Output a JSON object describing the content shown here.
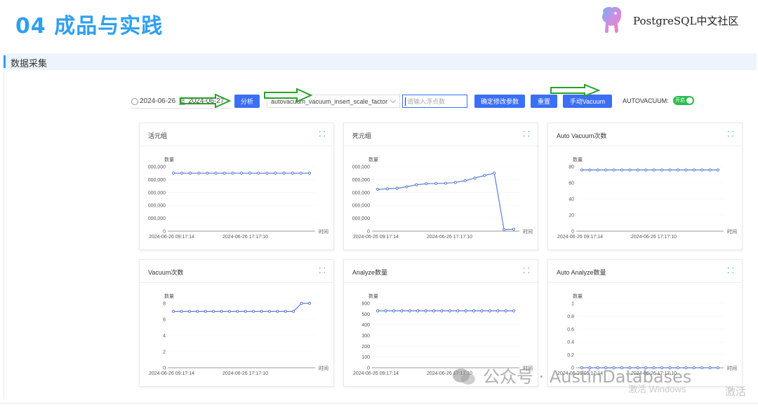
{
  "slide": {
    "title": "04 成品与实践",
    "brand": "PostgreSQL中文社区"
  },
  "section": {
    "label": "数据采集"
  },
  "toolbar": {
    "date_start": "2024-06-26",
    "date_sep": "至",
    "date_end": "2024-06-27",
    "analyze_button": "分析",
    "param_select": "autovacuum_vacuum_insert_scale_factor",
    "float_input_placeholder": "请输入浮点数",
    "confirm_button": "确定修改参数",
    "reset_button": "重置",
    "manual_vacuum_button": "手动Vacuum",
    "autovacuum_label": "AUTOVACUUM:",
    "toggle_label": "开启"
  },
  "colors": {
    "accent": "#3b6ff5",
    "line": "#5b7bd5",
    "toggle": "#2bbd4e",
    "title": "#2f9ff0"
  },
  "charts": [
    {
      "title": "活元组",
      "unit": "数量",
      "xlabel": "时间",
      "yticks": [
        "0",
        "000,000",
        "000,000",
        "000,000",
        "000,000",
        "000,000"
      ],
      "xticks": [
        "2024-06-26 09:17:14",
        "2024-06-26 17:17:10"
      ]
    },
    {
      "title": "死元组",
      "unit": "数量",
      "xlabel": "时间",
      "yticks": [
        "0",
        "000,000",
        "000,000",
        "000,000",
        "000,000",
        "000,000"
      ],
      "xticks": [
        "2024-06-26 09:17:14",
        "2024-06-26 17:17:10"
      ]
    },
    {
      "title": "Auto Vacuum次数",
      "unit": "数量",
      "xlabel": "时间",
      "yticks": [
        "0",
        "20",
        "40",
        "60",
        "80"
      ],
      "xticks": [
        "2024-06-26 09:17:14",
        "2024-06-26 17:17:10"
      ]
    },
    {
      "title": "Vacuum次数",
      "unit": "数量",
      "xlabel": "时间",
      "yticks": [
        "0",
        "2",
        "4",
        "6",
        "8"
      ],
      "xticks": [
        "2024-06-26 09:17:14",
        "2024-06-26 17:17:10"
      ]
    },
    {
      "title": "Analyze数量",
      "unit": "数量",
      "xlabel": "时间",
      "yticks": [
        "0",
        "100",
        "200",
        "300",
        "400",
        "500",
        "600"
      ],
      "xticks": [
        "2024-06-26 09:17:14",
        "2024-06-26 17:17:10"
      ]
    },
    {
      "title": "Auto Analyze数量",
      "unit": "数量",
      "xlabel": "时间",
      "yticks": [
        "0",
        "0.2",
        "0.4",
        "0.6",
        "0.8",
        "1"
      ],
      "xticks": [
        "2024-06-26 09:17:14",
        "2024-06-26 17:17:10"
      ]
    }
  ],
  "chart_data": [
    {
      "type": "line",
      "title": "活元组",
      "ylabel": "数量",
      "xlabel": "时间",
      "ylim": [
        0,
        5
      ],
      "y_scale_note": "axis labels truncated",
      "values": [
        4.5,
        4.5,
        4.5,
        4.5,
        4.5,
        4.5,
        4.5,
        4.5,
        4.5,
        4.5,
        4.5,
        4.5,
        4.5,
        4.5,
        4.5,
        4.5,
        4.5
      ]
    },
    {
      "type": "line",
      "title": "死元组",
      "ylabel": "数量",
      "xlabel": "时间",
      "ylim": [
        0,
        5
      ],
      "values": [
        3.25,
        3.28,
        3.33,
        3.45,
        3.6,
        3.68,
        3.7,
        3.72,
        3.78,
        3.92,
        4.12,
        4.32,
        4.5,
        0.12,
        0.15
      ]
    },
    {
      "type": "line",
      "title": "Auto Vacuum次数",
      "ylabel": "数量",
      "xlabel": "时间",
      "ylim": [
        0,
        80
      ],
      "values": [
        76,
        76,
        76,
        76,
        76,
        76,
        76,
        76,
        76,
        76,
        76,
        76,
        76,
        76,
        76,
        76,
        76,
        76
      ]
    },
    {
      "type": "line",
      "title": "Vacuum次数",
      "ylabel": "数量",
      "xlabel": "时间",
      "ylim": [
        0,
        8
      ],
      "values": [
        7,
        7,
        7,
        7,
        7,
        7,
        7,
        7,
        7,
        7,
        7,
        7,
        7,
        7,
        7,
        7,
        8,
        8
      ]
    },
    {
      "type": "line",
      "title": "Analyze数量",
      "ylabel": "数量",
      "xlabel": "时间",
      "ylim": [
        0,
        600
      ],
      "values": [
        530,
        530,
        530,
        530,
        530,
        530,
        530,
        530,
        530,
        530,
        530,
        530,
        530,
        530,
        530,
        530,
        530,
        530
      ]
    },
    {
      "type": "line",
      "title": "Auto Analyze数量",
      "ylabel": "数量",
      "xlabel": "时间",
      "ylim": [
        0,
        1
      ],
      "values": [
        0,
        0,
        0,
        0,
        0,
        0,
        0,
        0,
        0,
        0,
        0,
        0,
        0,
        0,
        0,
        0,
        0,
        0
      ]
    }
  ],
  "watermark": {
    "text": "公众号 · AustinDatabases",
    "activate_windows": "激活 Windows",
    "activate_short": "激活"
  }
}
